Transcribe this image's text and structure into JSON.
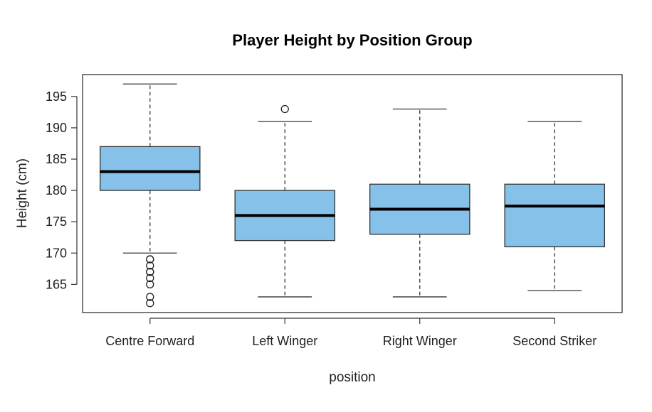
{
  "chart_data": {
    "type": "boxplot",
    "title": "Player Height by Position Group",
    "xlabel": "position",
    "ylabel": "Height (cm)",
    "categories": [
      "Centre Forward",
      "Left Winger",
      "Right Winger",
      "Second Striker"
    ],
    "y_ticks": [
      165,
      170,
      175,
      180,
      185,
      190,
      195
    ],
    "ylim": [
      160.5,
      198.5
    ],
    "box_color": "#85C1E9",
    "boxes": [
      {
        "category": "Centre Forward",
        "whisker_low": 170,
        "q1": 180,
        "median": 183,
        "q3": 187,
        "whisker_high": 197,
        "outliers": [
          169,
          169,
          168,
          167,
          167,
          166,
          165,
          163,
          162
        ]
      },
      {
        "category": "Left Winger",
        "whisker_low": 163,
        "q1": 172,
        "median": 176,
        "q3": 180,
        "whisker_high": 191,
        "outliers": [
          193
        ]
      },
      {
        "category": "Right Winger",
        "whisker_low": 163,
        "q1": 173,
        "median": 177,
        "q3": 181,
        "whisker_high": 193,
        "outliers": []
      },
      {
        "category": "Second Striker",
        "whisker_low": 164,
        "q1": 171,
        "median": 177.5,
        "q3": 181,
        "whisker_high": 191,
        "outliers": []
      }
    ],
    "grid": false,
    "legend": "none"
  }
}
